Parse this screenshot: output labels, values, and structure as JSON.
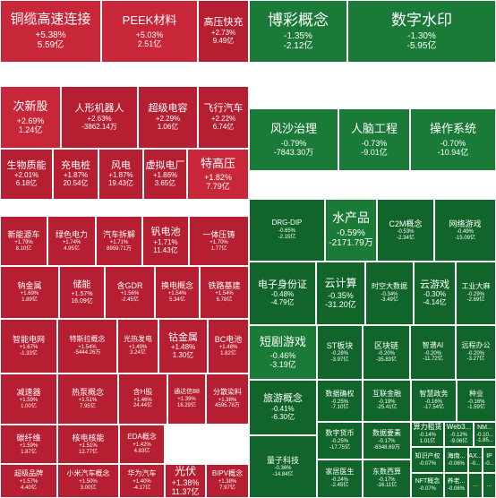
{
  "chart_data": {
    "type": "treemap",
    "colors": {
      "up": "#c8273a",
      "up_dark": "#b51f31",
      "down": "#1a7a37",
      "down_dark": "#11652b"
    },
    "tiles": [
      {
        "name": "铜缆高速连接",
        "pct": "+5.38%",
        "amount": "5.59亿"
      },
      {
        "name": "PEEK材料",
        "pct": "+5.03%",
        "amount": "2.51亿"
      },
      {
        "name": "高压快充",
        "pct": "+2.73%",
        "amount": "9.49亿"
      },
      {
        "name": "博彩概念",
        "pct": "-1.35%",
        "amount": "-2.12亿"
      },
      {
        "name": "数字水印",
        "pct": "-1.30%",
        "amount": "-5.95亿"
      },
      {
        "name": "次新股",
        "pct": "+2.69%",
        "amount": "1.24亿"
      },
      {
        "name": "人形机器人",
        "pct": "+2.63%",
        "amount": "-3862.14万"
      },
      {
        "name": "超级电容",
        "pct": "+2.29%",
        "amount": "1.06亿"
      },
      {
        "name": "飞行汽车",
        "pct": "+2.22%",
        "amount": "6.74亿"
      },
      {
        "name": "风沙治理",
        "pct": "-0.79%",
        "amount": "-7843.30万"
      },
      {
        "name": "人脑工程",
        "pct": "-0.73%",
        "amount": "-9.01亿"
      },
      {
        "name": "操作系统",
        "pct": "-0.70%",
        "amount": "-10.94亿"
      },
      {
        "name": "生物质能",
        "pct": "+2.01%",
        "amount": "6.18亿"
      },
      {
        "name": "充电桩",
        "pct": "+1.87%",
        "amount": "20.54亿"
      },
      {
        "name": "风电",
        "pct": "+1.87%",
        "amount": "19.43亿"
      },
      {
        "name": "虚拟电厂",
        "pct": "+1.86%",
        "amount": "3.65亿"
      },
      {
        "name": "特高压",
        "pct": "+1.82%",
        "amount": "7.79亿"
      },
      {
        "name": "DRG-DIP",
        "pct": "-0.65%",
        "amount": "-2.15亿"
      },
      {
        "name": "水产品",
        "pct": "-0.59%",
        "amount": "-2171.79万"
      },
      {
        "name": "C2M概念",
        "pct": "-0.53%",
        "amount": "-2.34亿"
      },
      {
        "name": "网络游戏",
        "pct": "-0.49%",
        "amount": "-15.09亿"
      },
      {
        "name": "新能源车",
        "pct": "+1.79%",
        "amount": "8.10亿"
      },
      {
        "name": "绿色电力",
        "pct": "+1.74%",
        "amount": "4.95亿"
      },
      {
        "name": "汽车拆解",
        "pct": "+1.71%",
        "amount": "8959.71万"
      },
      {
        "name": "钒电池",
        "pct": "+1.71%",
        "amount": "11.43亿"
      },
      {
        "name": "一体压铸",
        "pct": "+1.70%",
        "amount": "1.77亿"
      },
      {
        "name": "钠金属",
        "pct": "+1.69%",
        "amount": "1.89亿"
      },
      {
        "name": "储能",
        "pct": "+1.57%",
        "amount": "16.09亿"
      },
      {
        "name": "含GDR",
        "pct": "+1.56%",
        "amount": "-2.45亿"
      },
      {
        "name": "换电概念",
        "pct": "+1.54%",
        "amount": "5.34亿"
      },
      {
        "name": "铁路基建",
        "pct": "+1.54%",
        "amount": "6.78亿"
      },
      {
        "name": "电子身份证",
        "pct": "-0.48%",
        "amount": "-4.79亿"
      },
      {
        "name": "云计算",
        "pct": "-0.35%",
        "amount": "-31.20亿"
      },
      {
        "name": "时空大数据",
        "pct": "-0.34%",
        "amount": "-3.49亿"
      },
      {
        "name": "云游戏",
        "pct": "-0.30%",
        "amount": "-4.14亿"
      },
      {
        "name": "工业大麻",
        "pct": "-0.29%",
        "amount": "-2.69亿"
      },
      {
        "name": "智能电网",
        "pct": "+1.67%",
        "amount": "-1.33亿"
      },
      {
        "name": "特斯拉概念",
        "pct": "+1.54%",
        "amount": "-5444.26万"
      },
      {
        "name": "光热发电",
        "pct": "+1.49%",
        "amount": "3.24亿"
      },
      {
        "name": "钴金属",
        "pct": "+1.48%",
        "amount": "1.30亿"
      },
      {
        "name": "BC电池",
        "pct": "+1.48%",
        "amount": "1.82亿"
      },
      {
        "name": "短剧游戏",
        "pct": "-0.46%",
        "amount": "-3.19亿"
      },
      {
        "name": "ST板块",
        "pct": "-0.28%",
        "amount": "-3.97亿"
      },
      {
        "name": "区块链",
        "pct": "-0.20%",
        "amount": "-35.83亿"
      },
      {
        "name": "智谱AI",
        "pct": "-0.20%",
        "amount": "-11.72亿"
      },
      {
        "name": "远程办公",
        "pct": "-0.20%",
        "amount": "-3.27亿"
      },
      {
        "name": "减速器",
        "pct": "+1.59%",
        "amount": "1.00亿"
      },
      {
        "name": "热泵概念",
        "pct": "+1.51%",
        "amount": "7.95亿"
      },
      {
        "name": "含H股",
        "pct": "+1.46%",
        "amount": "24.44亿"
      },
      {
        "name": "通达信88",
        "pct": "+1.39%",
        "amount": "16.29亿"
      },
      {
        "name": "分散染料",
        "pct": "+1.38%",
        "amount": "4595.78万"
      },
      {
        "name": "数据确权",
        "pct": "-0.25%",
        "amount": "-7.10亿"
      },
      {
        "name": "互联金融",
        "pct": "-0.19%",
        "amount": "-25.41亿"
      },
      {
        "name": "智慧政务",
        "pct": "-0.16%",
        "amount": "-17.54亿"
      },
      {
        "name": "种业",
        "pct": "-0.16%",
        "amount": "-1.59亿"
      },
      {
        "name": "旅游概念",
        "pct": "-0.41%",
        "amount": "-6.30亿"
      },
      {
        "name": "碳纤维",
        "pct": "+1.59%",
        "amount": "1.87亿"
      },
      {
        "name": "核电核能",
        "pct": "+1.51%",
        "amount": "12.77亿"
      },
      {
        "name": "EDA概念",
        "pct": "+1.42%",
        "amount": "4.83亿"
      },
      {
        "name": "数字货币",
        "pct": "-0.25%",
        "amount": "-17.75亿"
      },
      {
        "name": "数据要素",
        "pct": "-0.17%",
        "amount": "-6348.69万"
      },
      {
        "name": "算力租赁",
        "pct": "-0.14%",
        "amount": "1.01亿"
      },
      {
        "name": "Web3...",
        "pct": "-0.12%",
        "amount": "-9.06亿"
      },
      {
        "name": "NM...",
        "pct": "-0.10...",
        "amount": "-1.85..."
      },
      {
        "name": "超级品牌",
        "pct": "+1.57%",
        "amount": "4.40亿"
      },
      {
        "name": "小米汽车概念",
        "pct": "+1.50%",
        "amount": "3.00亿"
      },
      {
        "name": "华为汽车",
        "pct": "+1.40%",
        "amount": "-4.17亿"
      },
      {
        "name": "光伏",
        "pct": "+1.38%",
        "amount": "11.37亿"
      },
      {
        "name": "BIPV概念",
        "pct": "+1.38%",
        "amount": "7.97亿"
      },
      {
        "name": "量子科技",
        "pct": "-0.36%",
        "amount": "-14.84亿"
      },
      {
        "name": "家居医生",
        "pct": "-0.24%",
        "amount": "-2.45亿"
      },
      {
        "name": "东数西算",
        "pct": "-0.17%",
        "amount": "-16.11亿"
      },
      {
        "name": "知识产权",
        "pct": "-0.07%",
        "amount": ""
      },
      {
        "name": "海南...",
        "pct": "-0.06%",
        "amount": ""
      },
      {
        "name": "AX...",
        "pct": "-0...",
        "amount": ""
      },
      {
        "name": "IP",
        "pct": "-0...",
        "amount": ""
      },
      {
        "name": "NFT概念",
        "pct": "-0.07%",
        "amount": ""
      },
      {
        "name": "养老...",
        "pct": "-0.06%",
        "amount": ""
      },
      {
        "name": "...",
        "pct": "",
        "amount": ""
      },
      {
        "name": "...",
        "pct": "",
        "amount": ""
      }
    ]
  }
}
